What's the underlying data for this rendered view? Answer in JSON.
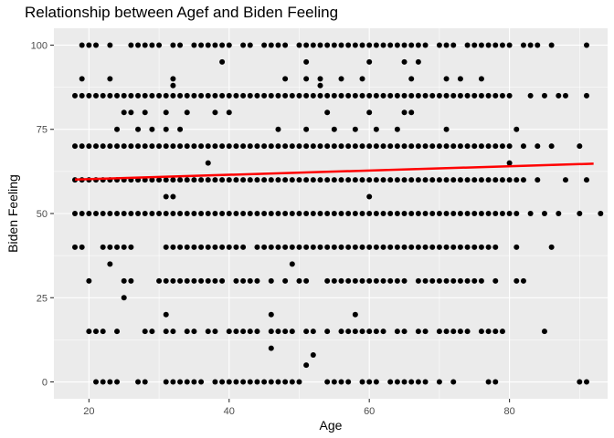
{
  "chart_data": {
    "type": "scatter",
    "title": "Relationship between Agef and Biden Feeling",
    "xlabel": "Age",
    "ylabel": "Biden Feeling",
    "xlim": [
      15,
      94
    ],
    "ylim": [
      -5,
      105
    ],
    "xticks": [
      20,
      40,
      60,
      80
    ],
    "yticks": [
      0,
      25,
      50,
      75,
      100
    ],
    "xtick_labels": [
      "20",
      "40",
      "60",
      "80"
    ],
    "ytick_labels": [
      "0",
      "25",
      "50",
      "75",
      "100"
    ],
    "grid": true,
    "background": "#ebebeb",
    "point_color": "#000000",
    "trend_line": {
      "color": "#ff0000",
      "x": [
        18,
        92
      ],
      "y": [
        60.1,
        64.8
      ]
    },
    "bands": [
      {
        "y": 100,
        "xs": [
          19,
          20,
          21,
          23,
          26,
          27,
          28,
          29,
          30,
          32,
          33,
          35,
          36,
          37,
          38,
          39,
          40,
          42,
          43,
          45,
          46,
          47,
          48,
          50,
          51,
          52,
          53,
          54,
          55,
          56,
          57,
          58,
          59,
          60,
          61,
          62,
          63,
          64,
          65,
          66,
          67,
          68,
          70,
          71,
          72,
          74,
          75,
          76,
          77,
          78,
          79,
          80,
          82,
          83,
          84,
          86,
          91
        ]
      },
      {
        "y": 95,
        "xs": [
          39,
          51,
          60,
          65,
          67
        ]
      },
      {
        "y": 90,
        "xs": [
          19,
          23,
          32,
          48,
          51,
          53,
          56,
          59,
          66,
          71,
          73,
          76
        ]
      },
      {
        "y": 88,
        "xs": [
          32,
          53
        ]
      },
      {
        "y": 85,
        "xs": [
          18,
          19,
          20,
          21,
          22,
          23,
          24,
          25,
          26,
          27,
          28,
          29,
          30,
          31,
          32,
          33,
          34,
          35,
          36,
          37,
          38,
          39,
          40,
          41,
          42,
          43,
          44,
          45,
          46,
          47,
          48,
          49,
          50,
          51,
          52,
          53,
          54,
          55,
          56,
          57,
          58,
          59,
          60,
          61,
          62,
          63,
          64,
          65,
          66,
          67,
          68,
          69,
          70,
          71,
          72,
          73,
          74,
          75,
          76,
          77,
          78,
          79,
          80,
          83,
          85,
          87,
          88,
          91
        ]
      },
      {
        "y": 80,
        "xs": [
          25,
          26,
          28,
          31,
          34,
          38,
          40,
          54,
          60,
          65,
          66
        ]
      },
      {
        "y": 75,
        "xs": [
          24,
          27,
          29,
          31,
          33,
          47,
          51,
          55,
          58,
          61,
          64,
          71,
          81
        ]
      },
      {
        "y": 70,
        "xs": [
          18,
          19,
          20,
          21,
          22,
          23,
          24,
          25,
          26,
          27,
          28,
          29,
          30,
          31,
          32,
          33,
          34,
          35,
          36,
          37,
          38,
          39,
          40,
          41,
          42,
          43,
          44,
          45,
          46,
          47,
          48,
          49,
          50,
          51,
          52,
          53,
          54,
          55,
          56,
          57,
          58,
          59,
          60,
          61,
          62,
          63,
          64,
          65,
          66,
          67,
          68,
          69,
          70,
          71,
          72,
          73,
          74,
          75,
          76,
          77,
          78,
          79,
          80,
          82,
          84,
          86,
          90
        ]
      },
      {
        "y": 65,
        "xs": [
          37,
          80
        ]
      },
      {
        "y": 60,
        "xs": [
          18,
          19,
          20,
          21,
          22,
          23,
          24,
          25,
          26,
          27,
          28,
          29,
          30,
          31,
          32,
          33,
          34,
          35,
          36,
          37,
          38,
          39,
          40,
          41,
          42,
          43,
          44,
          45,
          46,
          47,
          48,
          49,
          50,
          51,
          52,
          53,
          54,
          55,
          56,
          57,
          58,
          59,
          60,
          61,
          62,
          63,
          64,
          65,
          66,
          67,
          68,
          69,
          70,
          71,
          72,
          73,
          74,
          75,
          76,
          77,
          78,
          79,
          80,
          81,
          82,
          84,
          88,
          91
        ]
      },
      {
        "y": 55,
        "xs": [
          31,
          32,
          60
        ]
      },
      {
        "y": 50,
        "xs": [
          18,
          19,
          20,
          21,
          22,
          23,
          24,
          25,
          26,
          27,
          28,
          29,
          30,
          31,
          32,
          33,
          34,
          35,
          36,
          37,
          38,
          39,
          40,
          41,
          42,
          43,
          44,
          45,
          46,
          47,
          48,
          49,
          50,
          51,
          52,
          53,
          54,
          55,
          56,
          57,
          58,
          59,
          60,
          61,
          62,
          63,
          64,
          65,
          66,
          67,
          68,
          69,
          70,
          71,
          72,
          73,
          74,
          75,
          76,
          77,
          78,
          79,
          80,
          81,
          83,
          85,
          87,
          90,
          93
        ]
      },
      {
        "y": 40,
        "xs": [
          18,
          19,
          22,
          23,
          24,
          25,
          26,
          31,
          32,
          33,
          34,
          35,
          36,
          37,
          38,
          39,
          40,
          41,
          42,
          44,
          45,
          46,
          47,
          48,
          49,
          50,
          51,
          52,
          53,
          54,
          55,
          56,
          57,
          58,
          59,
          60,
          61,
          62,
          63,
          64,
          65,
          66,
          67,
          68,
          69,
          70,
          71,
          72,
          73,
          74,
          75,
          76,
          77,
          78,
          81,
          86
        ]
      },
      {
        "y": 35,
        "xs": [
          23,
          49
        ]
      },
      {
        "y": 30,
        "xs": [
          20,
          25,
          26,
          30,
          31,
          32,
          33,
          34,
          35,
          36,
          37,
          38,
          39,
          41,
          42,
          43,
          44,
          46,
          48,
          50,
          51,
          54,
          55,
          56,
          57,
          58,
          59,
          60,
          61,
          62,
          63,
          64,
          65,
          67,
          68,
          69,
          70,
          71,
          72,
          73,
          74,
          75,
          76,
          78,
          81,
          82
        ]
      },
      {
        "y": 25,
        "xs": [
          25
        ]
      },
      {
        "y": 20,
        "xs": [
          31,
          46,
          58
        ]
      },
      {
        "y": 15,
        "xs": [
          20,
          21,
          22,
          24,
          28,
          29,
          31,
          32,
          34,
          35,
          37,
          38,
          40,
          41,
          42,
          43,
          44,
          46,
          47,
          48,
          49,
          51,
          52,
          54,
          56,
          57,
          58,
          59,
          60,
          61,
          62,
          64,
          65,
          67,
          68,
          70,
          71,
          72,
          73,
          74,
          76,
          77,
          78,
          79,
          85
        ]
      },
      {
        "y": 10,
        "xs": [
          46
        ]
      },
      {
        "y": 8,
        "xs": [
          52
        ]
      },
      {
        "y": 5,
        "xs": [
          51
        ]
      },
      {
        "y": 0,
        "xs": [
          21,
          22,
          23,
          24,
          27,
          28,
          31,
          32,
          33,
          34,
          35,
          36,
          38,
          39,
          40,
          41,
          42,
          43,
          44,
          45,
          46,
          47,
          48,
          49,
          50,
          54,
          55,
          56,
          57,
          59,
          60,
          61,
          63,
          64,
          65,
          66,
          67,
          68,
          70,
          72,
          77,
          78,
          90,
          91
        ]
      }
    ]
  }
}
